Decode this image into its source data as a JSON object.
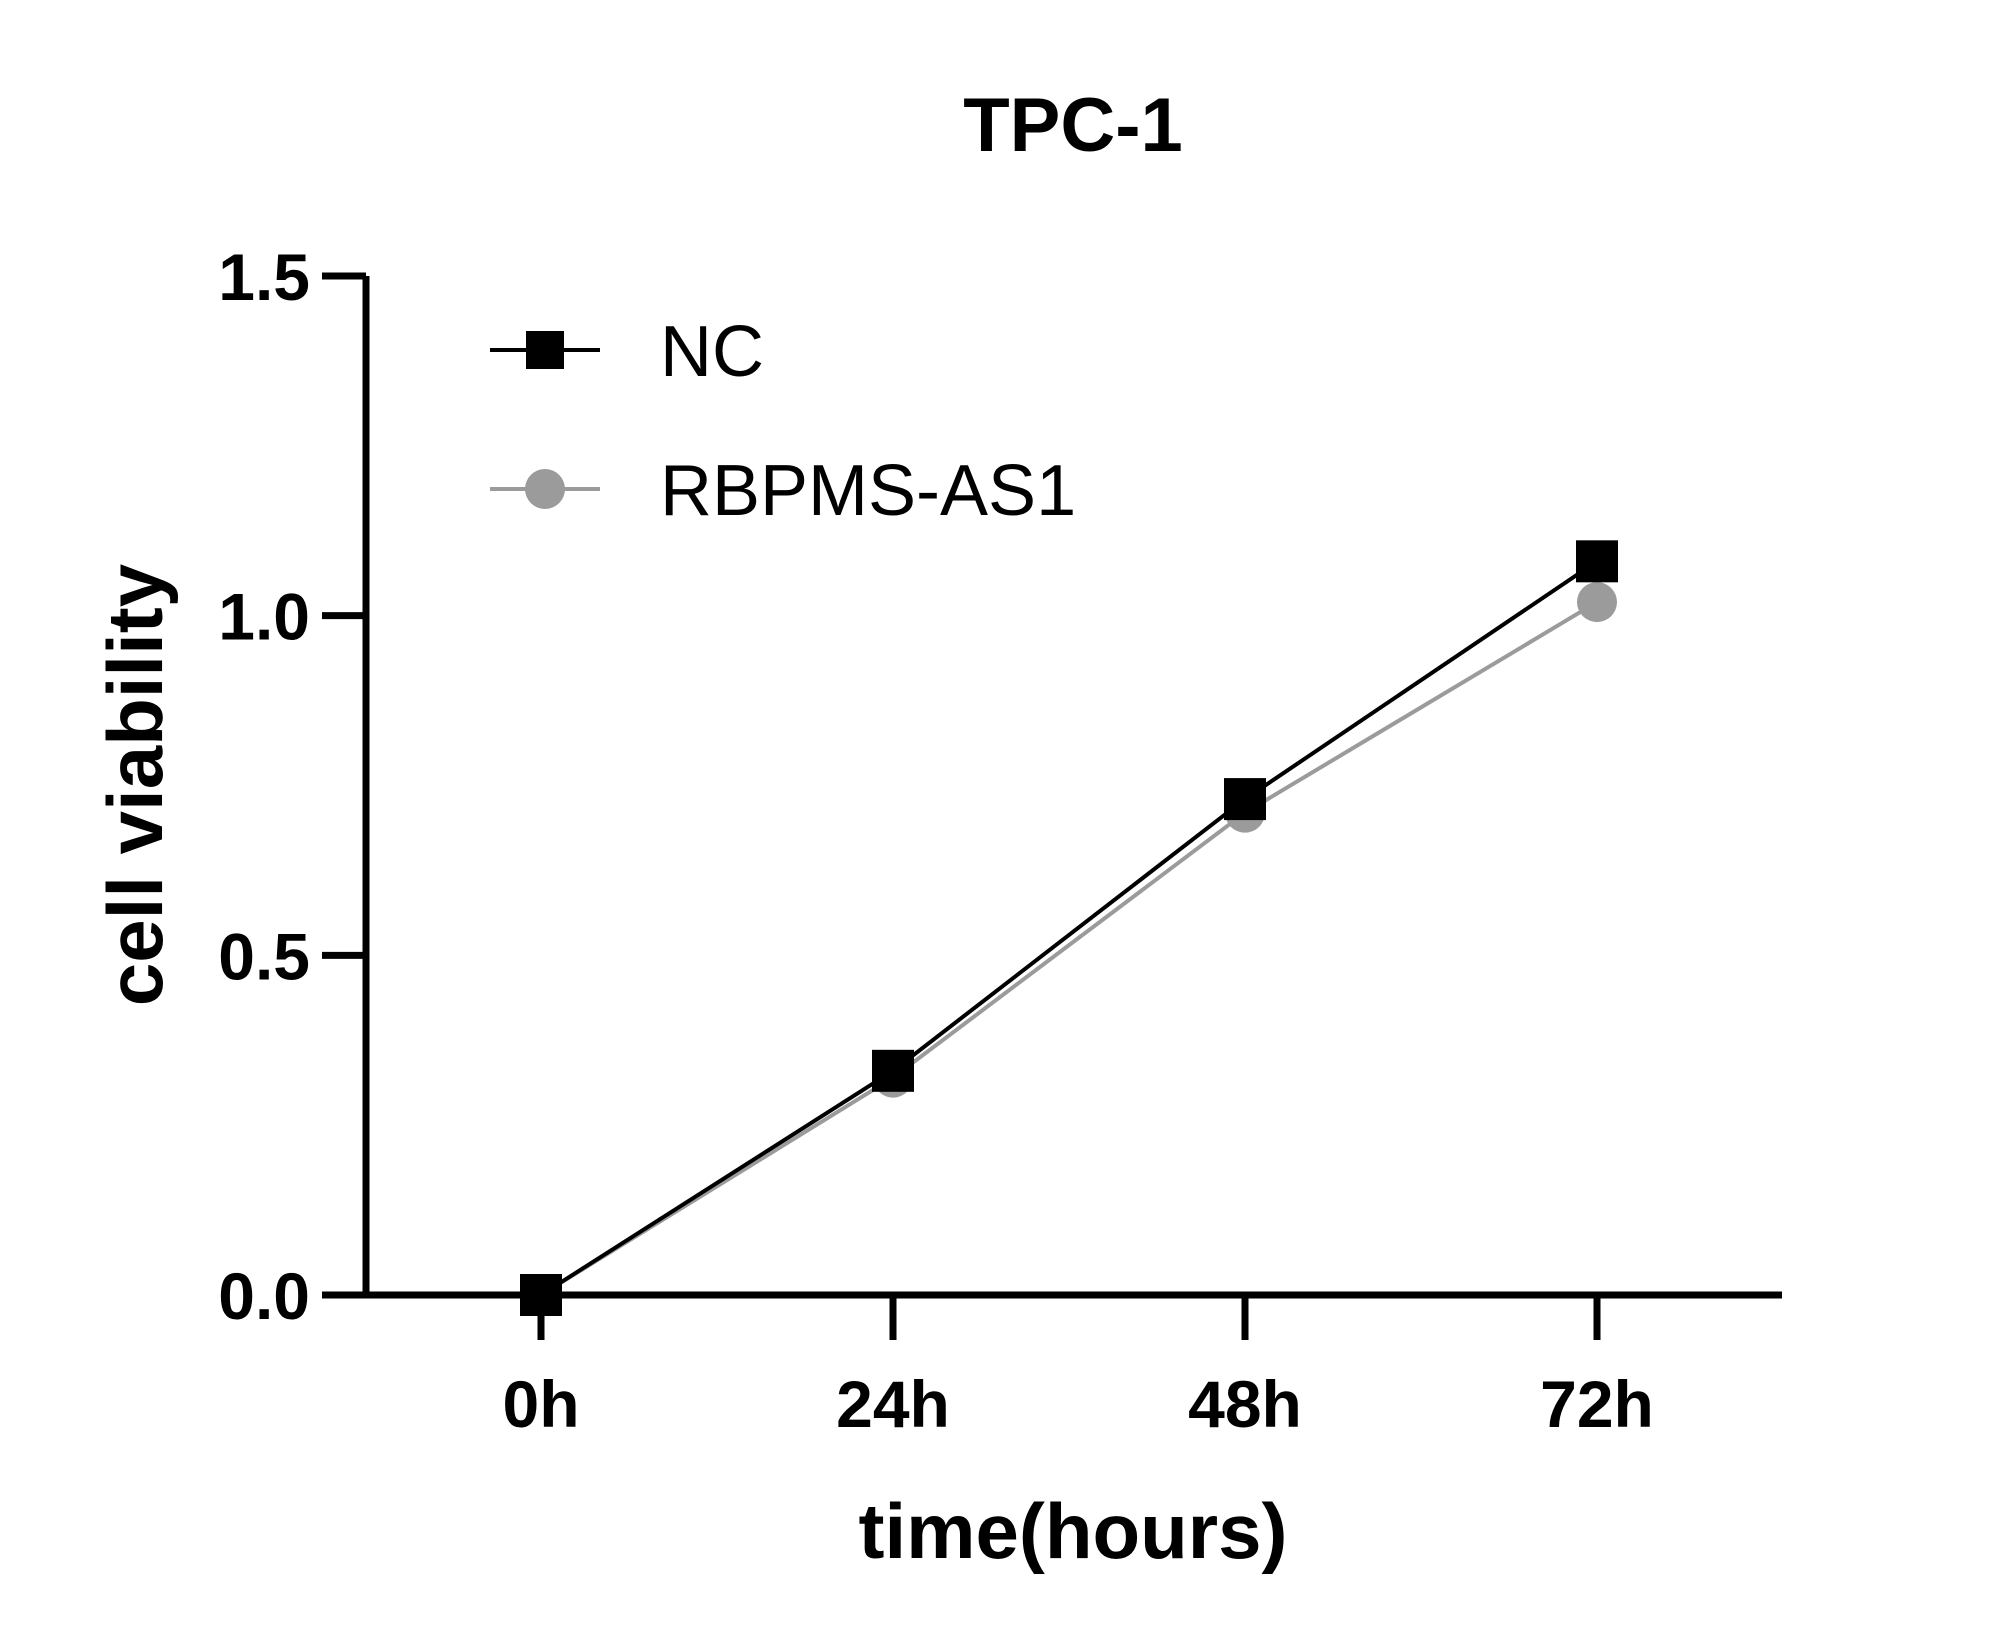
{
  "chart_data": {
    "type": "line",
    "title": "TPC-1",
    "xlabel": "time(hours)",
    "ylabel": "cell viability",
    "categories": [
      "0h",
      "24h",
      "48h",
      "72h"
    ],
    "y_ticks": [
      "0.0",
      "0.5",
      "1.0",
      "1.5"
    ],
    "y_tick_values": [
      0.0,
      0.5,
      1.0,
      1.5
    ],
    "ylim": [
      0,
      1.5
    ],
    "grid": false,
    "legend_position": "top-left",
    "series": [
      {
        "name": "NC",
        "values": [
          0.0,
          0.33,
          0.73,
          1.08
        ],
        "color": "#000000",
        "marker": "square"
      },
      {
        "name": "RBPMS-AS1",
        "values": [
          0.0,
          0.32,
          0.71,
          1.02
        ],
        "color": "#9b9b9b",
        "marker": "circle"
      }
    ]
  }
}
